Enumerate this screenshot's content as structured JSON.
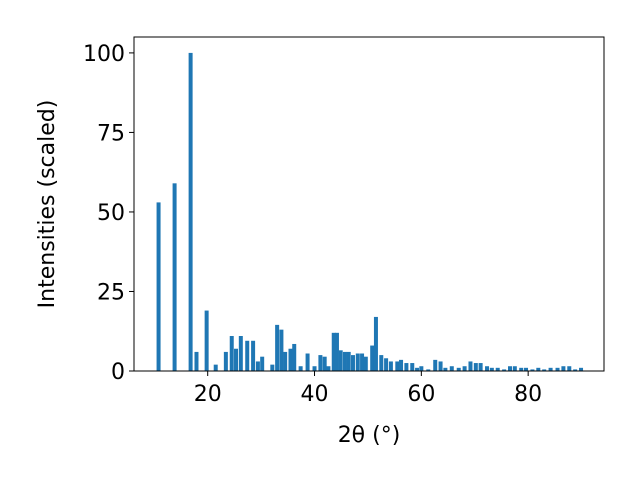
{
  "chart_data": {
    "type": "bar",
    "xlabel": "2θ (°)",
    "ylabel": "Intensities (scaled)",
    "x": [
      10.8,
      13.8,
      16.8,
      17.9,
      19.8,
      21.5,
      23.4,
      24.5,
      25.3,
      26.2,
      27.4,
      28.5,
      29.4,
      30.2,
      32.1,
      33.0,
      33.8,
      34.5,
      35.5,
      36.2,
      37.4,
      38.7,
      40.0,
      41.1,
      41.9,
      42.6,
      43.6,
      44.2,
      44.9,
      45.7,
      46.4,
      47.2,
      48.1,
      48.9,
      49.6,
      50.8,
      51.5,
      52.5,
      53.4,
      54.3,
      55.5,
      56.2,
      57.2,
      58.3,
      59.2,
      60.0,
      61.3,
      62.6,
      63.6,
      64.5,
      65.7,
      67.0,
      68.1,
      69.2,
      70.2,
      71.1,
      72.3,
      73.2,
      74.3,
      75.5,
      76.6,
      77.5,
      78.7,
      79.6,
      80.8,
      81.9,
      83.0,
      84.2,
      85.5,
      86.6,
      87.7,
      88.8,
      89.9
    ],
    "values": [
      53,
      59,
      100,
      6,
      19,
      2,
      6,
      11,
      7,
      11,
      9.5,
      9.5,
      3,
      4.5,
      2,
      14.5,
      13,
      6,
      7,
      8.5,
      1.5,
      5.5,
      1.5,
      5,
      4.5,
      1.5,
      12,
      12,
      6.5,
      6,
      6,
      5,
      5.5,
      5.5,
      4.5,
      8,
      17,
      5,
      4,
      3,
      3,
      3.5,
      2.5,
      2.5,
      1,
      1.5,
      0.5,
      3.5,
      3,
      1,
      1.5,
      1,
      1.5,
      3,
      2.5,
      2.5,
      1.5,
      1,
      1,
      0.5,
      1.5,
      1.5,
      1,
      1,
      0.5,
      1,
      0.5,
      1,
      1,
      1.5,
      1.5,
      0.5,
      1
    ],
    "color": "#1f77b4",
    "xlim": [
      6.2,
      94.2
    ],
    "xticks": [
      20,
      40,
      60,
      80
    ],
    "ylim": [
      0,
      105
    ],
    "yticks": [
      0,
      25,
      50,
      75,
      100
    ]
  }
}
